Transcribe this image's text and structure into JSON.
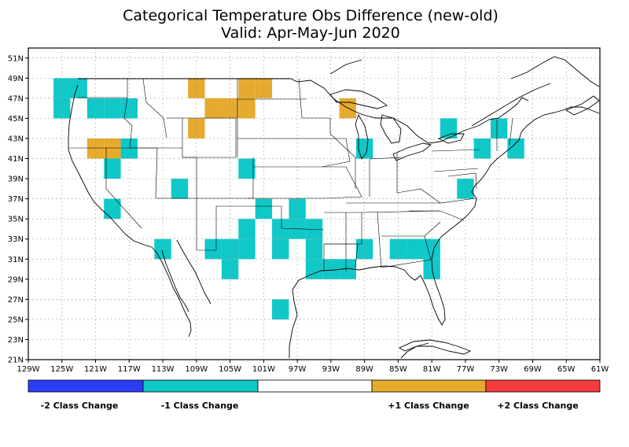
{
  "title_line1": "Categorical Temperature Obs Difference (new-old)",
  "title_line2": "Valid: Apr-May-Jun 2020",
  "colors": {
    "minus2": "#2b3cf5",
    "minus1": "#10c8c8",
    "zero": "#ffffff",
    "plus1": "#e5aa2e",
    "plus2": "#f53c3c"
  },
  "map": {
    "lon_range": [
      -129,
      -61
    ],
    "lat_range": [
      21,
      52
    ],
    "x_ticks": [
      "129W",
      "125W",
      "121W",
      "117W",
      "113W",
      "109W",
      "105W",
      "101W",
      "97W",
      "93W",
      "89W",
      "85W",
      "81W",
      "77W",
      "73W",
      "69W",
      "65W",
      "61W"
    ],
    "x_tick_values": [
      -129,
      -125,
      -121,
      -117,
      -113,
      -109,
      -105,
      -101,
      -97,
      -93,
      -89,
      -85,
      -81,
      -77,
      -73,
      -69,
      -65,
      -61
    ],
    "y_ticks": [
      "21N",
      "23N",
      "25N",
      "27N",
      "29N",
      "31N",
      "33N",
      "35N",
      "37N",
      "39N",
      "41N",
      "43N",
      "45N",
      "47N",
      "49N",
      "51N"
    ],
    "y_tick_values": [
      21,
      23,
      25,
      27,
      29,
      31,
      33,
      35,
      37,
      39,
      41,
      43,
      45,
      47,
      49,
      51
    ],
    "cell_size_deg": 2,
    "cells": [
      {
        "lon": -125,
        "lat": 48,
        "v": -1
      },
      {
        "lon": -123,
        "lat": 48,
        "v": -1
      },
      {
        "lon": -125,
        "lat": 46,
        "v": -1
      },
      {
        "lon": -121,
        "lat": 46,
        "v": -1
      },
      {
        "lon": -119,
        "lat": 46,
        "v": -1
      },
      {
        "lon": -117,
        "lat": 46,
        "v": -1
      },
      {
        "lon": -109,
        "lat": 48,
        "v": 1
      },
      {
        "lon": -107,
        "lat": 46,
        "v": 1
      },
      {
        "lon": -105,
        "lat": 46,
        "v": 1
      },
      {
        "lon": -103,
        "lat": 48,
        "v": 1
      },
      {
        "lon": -101,
        "lat": 48,
        "v": 1
      },
      {
        "lon": -103,
        "lat": 46,
        "v": 1
      },
      {
        "lon": -91,
        "lat": 46,
        "v": 1
      },
      {
        "lon": -109,
        "lat": 44,
        "v": 1
      },
      {
        "lon": -121,
        "lat": 42,
        "v": 1
      },
      {
        "lon": -119,
        "lat": 42,
        "v": 1
      },
      {
        "lon": -117,
        "lat": 42,
        "v": -1
      },
      {
        "lon": -119,
        "lat": 40,
        "v": -1
      },
      {
        "lon": -111,
        "lat": 38,
        "v": -1
      },
      {
        "lon": -119,
        "lat": 36,
        "v": -1
      },
      {
        "lon": -103,
        "lat": 40,
        "v": -1
      },
      {
        "lon": -89,
        "lat": 42,
        "v": -1
      },
      {
        "lon": -79,
        "lat": 44,
        "v": -1
      },
      {
        "lon": -75,
        "lat": 42,
        "v": -1
      },
      {
        "lon": -73,
        "lat": 44,
        "v": -1
      },
      {
        "lon": -71,
        "lat": 42,
        "v": -1
      },
      {
        "lon": -77,
        "lat": 38,
        "v": -1
      },
      {
        "lon": -113,
        "lat": 32,
        "v": -1
      },
      {
        "lon": -107,
        "lat": 32,
        "v": -1
      },
      {
        "lon": -105,
        "lat": 32,
        "v": -1
      },
      {
        "lon": -103,
        "lat": 32,
        "v": -1
      },
      {
        "lon": -105,
        "lat": 30,
        "v": -1
      },
      {
        "lon": -103,
        "lat": 34,
        "v": -1
      },
      {
        "lon": -101,
        "lat": 36,
        "v": -1
      },
      {
        "lon": -97,
        "lat": 36,
        "v": -1
      },
      {
        "lon": -99,
        "lat": 34,
        "v": -1
      },
      {
        "lon": -97,
        "lat": 34,
        "v": -1
      },
      {
        "lon": -95,
        "lat": 34,
        "v": -1
      },
      {
        "lon": -99,
        "lat": 32,
        "v": -1
      },
      {
        "lon": -95,
        "lat": 32,
        "v": -1
      },
      {
        "lon": -95,
        "lat": 30,
        "v": -1
      },
      {
        "lon": -93,
        "lat": 30,
        "v": -1
      },
      {
        "lon": -91,
        "lat": 30,
        "v": -1
      },
      {
        "lon": -89,
        "lat": 32,
        "v": -1
      },
      {
        "lon": -85,
        "lat": 32,
        "v": -1
      },
      {
        "lon": -83,
        "lat": 32,
        "v": -1
      },
      {
        "lon": -81,
        "lat": 32,
        "v": -1
      },
      {
        "lon": -81,
        "lat": 30,
        "v": -1
      },
      {
        "lon": -99,
        "lat": 26,
        "v": -1
      }
    ]
  },
  "legend": {
    "labels": [
      "-2 Class Change",
      "-1 Class Change",
      "+1 Class Change",
      "+2 Class Change"
    ]
  }
}
